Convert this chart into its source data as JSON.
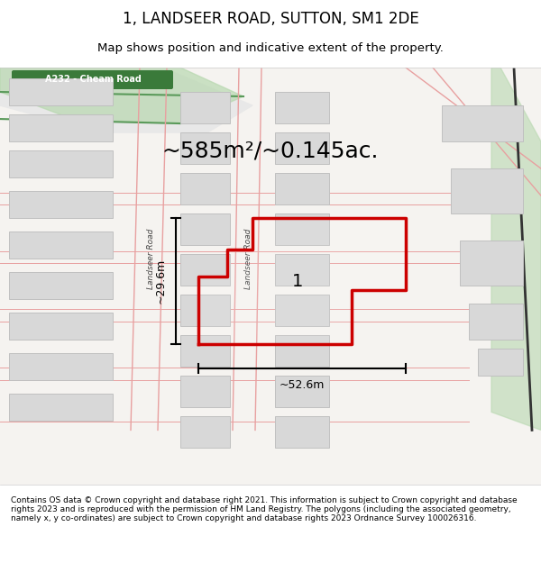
{
  "title": "1, LANDSEER ROAD, SUTTON, SM1 2DE",
  "subtitle": "Map shows position and indicative extent of the property.",
  "area_text": "~585m²/~0.145ac.",
  "width_label": "~52.6m",
  "height_label": "~29.6m",
  "property_number": "1",
  "footer_text": "Contains OS data © Crown copyright and database right 2021. This information is subject to Crown copyright and database rights 2023 and is reproduced with the permission of HM Land Registry. The polygons (including the associated geometry, namely x, y co-ordinates) are subject to Crown copyright and database rights 2023 Ordnance Survey 100026316.",
  "bg_color": "#f0eeeb",
  "road_fill": "#ffffff",
  "building_fill": "#d9d9d9",
  "plot_outline_color": "#cc0000",
  "road_label_bg": "#3a7a3a",
  "road_label_text": "#ffffff",
  "map_bg": "#f5f3f0",
  "pink_line_color": "#e8a0a0",
  "green_area_color": "#b8d8b0"
}
